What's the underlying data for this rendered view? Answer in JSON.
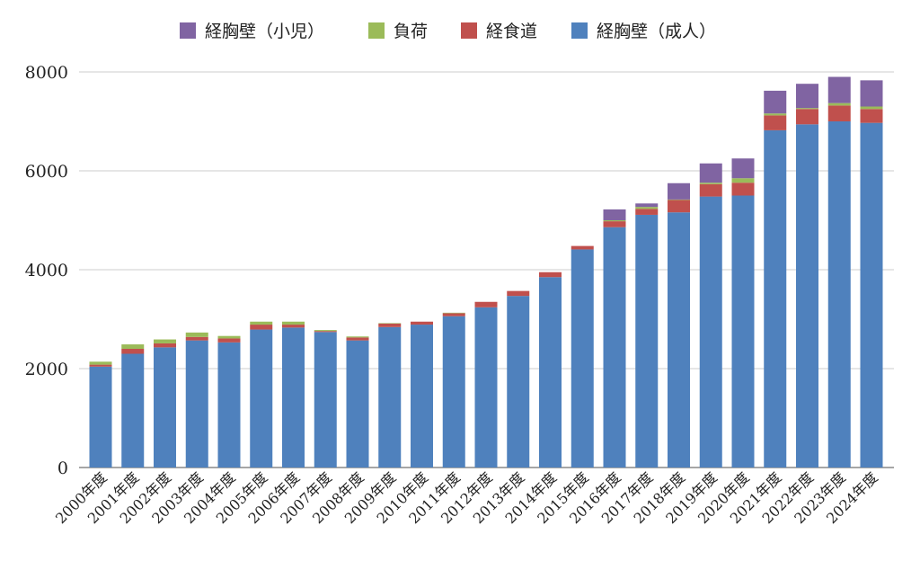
{
  "chart_data": {
    "type": "bar",
    "stacked": true,
    "title": "",
    "xlabel": "",
    "ylabel": "",
    "ylim": [
      0,
      8000
    ],
    "yticks": [
      0,
      2000,
      4000,
      6000,
      8000
    ],
    "grid": true,
    "legend_placement": "top",
    "legend_order": [
      3,
      2,
      1,
      0
    ],
    "categories": [
      "2000年度",
      "2001年度",
      "2002年度",
      "2003年度",
      "2004年度",
      "2005年度",
      "2006年度",
      "2007年度",
      "2008年度",
      "2009年度",
      "2010年度",
      "2011年度",
      "2012年度",
      "2013年度",
      "2014年度",
      "2015年度",
      "2016年度",
      "2017年度",
      "2018年度",
      "2019年度",
      "2020年度",
      "2021年度",
      "2022年度",
      "2023年度",
      "2024年度"
    ],
    "series": [
      {
        "name": "経胸壁（成人）",
        "color": "#4f81bd",
        "values": [
          2040,
          2300,
          2430,
          2570,
          2530,
          2790,
          2830,
          2740,
          2570,
          2840,
          2890,
          3060,
          3240,
          3470,
          3850,
          4410,
          4860,
          5110,
          5160,
          5480,
          5500,
          6820,
          6940,
          7000,
          6970
        ]
      },
      {
        "name": "経食道",
        "color": "#c0504d",
        "values": [
          40,
          100,
          80,
          70,
          80,
          100,
          60,
          20,
          60,
          70,
          60,
          60,
          110,
          100,
          100,
          70,
          120,
          120,
          250,
          250,
          260,
          300,
          310,
          320,
          280
        ]
      },
      {
        "name": "負荷",
        "color": "#9bbb59",
        "values": [
          60,
          90,
          80,
          90,
          50,
          60,
          60,
          20,
          20,
          10,
          0,
          10,
          0,
          0,
          0,
          0,
          20,
          40,
          10,
          30,
          90,
          40,
          20,
          50,
          50
        ]
      },
      {
        "name": "経胸壁（小児）",
        "color": "#8064a2",
        "values": [
          0,
          0,
          0,
          0,
          0,
          0,
          0,
          0,
          0,
          0,
          0,
          0,
          0,
          0,
          0,
          0,
          220,
          70,
          330,
          390,
          400,
          460,
          490,
          530,
          530
        ]
      }
    ]
  }
}
